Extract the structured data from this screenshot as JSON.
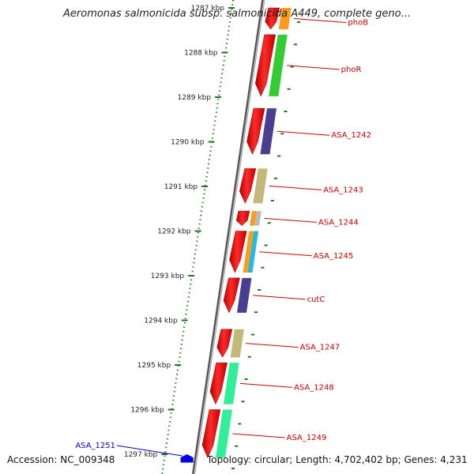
{
  "title": "Aeromonas salmonicida subsp. salmonicida A449, complete geno...",
  "footer": {
    "accession": "Accession: NC_009348",
    "topology": "Topology: circular; Length: 4,702,402 bp; Genes: 4,231"
  },
  "colors": {
    "backbone": "#8a8a8a",
    "tick": "#1f7a1f",
    "forward_gene": "#ff2020",
    "label_forward": "#cc0000",
    "label_reverse": "#0000cc",
    "reverse_gene": "#0000ee"
  },
  "ruler": {
    "unit": "kbp",
    "ticks": [
      "1287 kbp",
      "1288 kbp",
      "1289 kbp",
      "1290 kbp",
      "1291 kbp",
      "1292 kbp",
      "1293 kbp",
      "1294 kbp",
      "1295 kbp",
      "1296 kbp",
      "1297 kbp"
    ]
  },
  "genes": [
    {
      "label": "phoB",
      "strand": "+",
      "start": 1287.0,
      "end": 1287.55,
      "func_color": "#ff9a1a"
    },
    {
      "label": "phoR",
      "strand": "+",
      "start": 1287.6,
      "end": 1289.05,
      "func_color": "#33cc33"
    },
    {
      "label": "ASA_1242",
      "strand": "+",
      "start": 1289.25,
      "end": 1290.35,
      "func_color": "#4b3d8f"
    },
    {
      "label": "ASA_1243",
      "strand": "+",
      "start": 1290.6,
      "end": 1291.45,
      "func_color": "#c2b87a"
    },
    {
      "label": "ASA_1244",
      "strand": "+",
      "start": 1291.55,
      "end": 1291.95,
      "func_color": "#ff9a1a",
      "func_color2": "#bbbbbb"
    },
    {
      "label": "ASA_1245",
      "strand": "+",
      "start": 1292.0,
      "end": 1293.0,
      "func_color": "#ff9a1a",
      "func_color2": "#22bbdd"
    },
    {
      "label": "cutC",
      "strand": "+",
      "start": 1293.05,
      "end": 1293.9,
      "func_color": "#4b3d8f"
    },
    {
      "label": "ASA_1247",
      "strand": "+",
      "start": 1294.2,
      "end": 1294.9,
      "func_color": "#c2b87a"
    },
    {
      "label": "ASA_1248",
      "strand": "+",
      "start": 1294.95,
      "end": 1295.95,
      "func_color": "#33ee99"
    },
    {
      "label": "ASA_1249",
      "strand": "+",
      "start": 1296.0,
      "end": 1297.15,
      "func_color": "#33ee99"
    },
    {
      "label": "ASA_1251",
      "strand": "-",
      "start": 1297.0,
      "end": 1297.15,
      "func_color": ""
    }
  ]
}
